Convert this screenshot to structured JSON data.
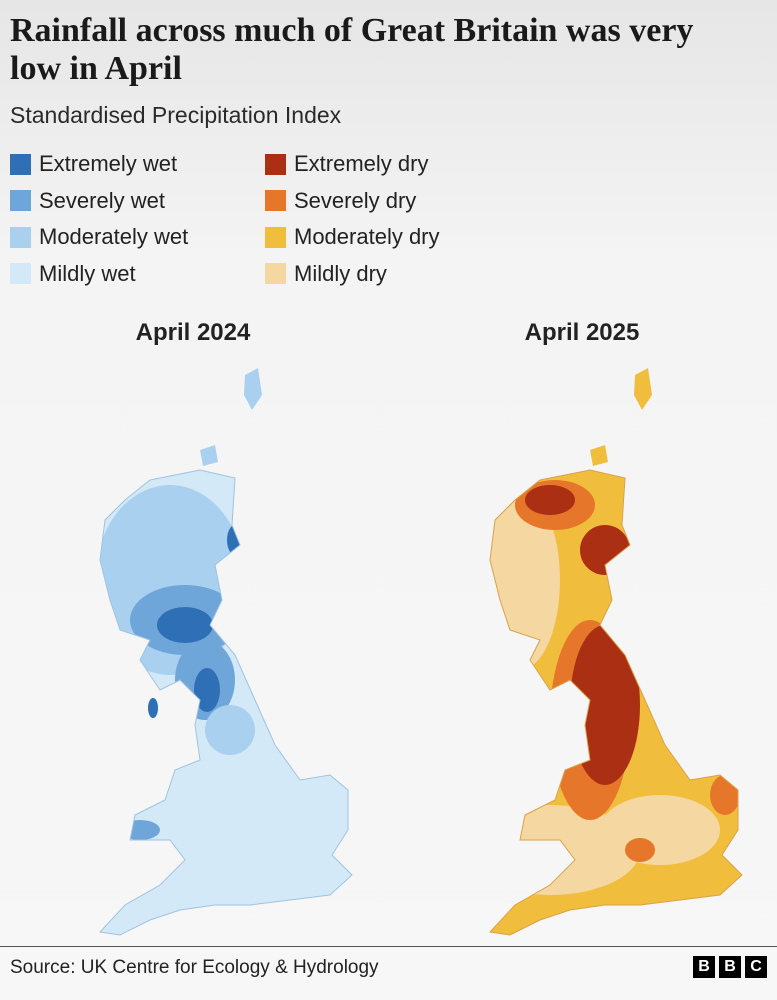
{
  "header": {
    "title": "Rainfall across much of Great Britain was very low in April",
    "subtitle": "Standardised Precipitation Index"
  },
  "legend": {
    "items": [
      {
        "label": "Extremely wet",
        "color": "#2f6fb5"
      },
      {
        "label": "Severely wet",
        "color": "#6fa6d9"
      },
      {
        "label": "Moderately wet",
        "color": "#a9d0ee"
      },
      {
        "label": "Mildly wet",
        "color": "#d4e9f7"
      },
      {
        "label": "Extremely dry",
        "color": "#ab2f13"
      },
      {
        "label": "Severely dry",
        "color": "#e6762a"
      },
      {
        "label": "Moderately dry",
        "color": "#f0be3c"
      },
      {
        "label": "Mildly dry",
        "color": "#f5d7a1"
      }
    ]
  },
  "maps": [
    {
      "title": "April 2024"
    },
    {
      "title": "April 2025"
    }
  ],
  "footer": {
    "source": "Source: UK Centre for Ecology & Hydrology",
    "logo": [
      "B",
      "B",
      "C"
    ]
  }
}
